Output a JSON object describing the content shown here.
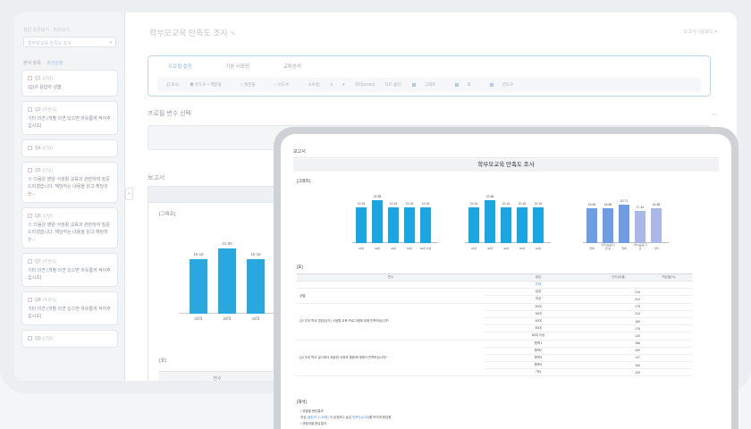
{
  "sidebar": {
    "survey_label": "설문 조문보기 · 미리보기",
    "survey_select": "학부모교육 만족도 조사",
    "tabs": [
      "분석 항목",
      "조건설정"
    ],
    "questions": [
      {
        "num": "Q1",
        "type": "(단일)",
        "text": "(Q)의 응답자 성별"
      },
      {
        "num": "Q2",
        "type": "(주관식)",
        "text": "기타 의견 (개별 의견 있으면 자유롭게 적어주십시오)"
      },
      {
        "num": "Q4",
        "type": "(단일)",
        "text": ""
      },
      {
        "num": "Q5",
        "type": "(단일)",
        "text": "※ 다음은 영양·식생활 교육과 관련하여 질문드리겠습니다. 해당하는 내용을 읽고 해당하는..."
      },
      {
        "num": "Q6",
        "type": "(단일)",
        "text": "※ 다음은 영양·식생활 교육과 관련하여 질문드리겠습니다. 해당하는 내용을 읽고 해당하는..."
      },
      {
        "num": "Q7",
        "type": "(주관식)",
        "text": "기타 의견 (개별 의견 있으면 자유롭게 적어주십시오)"
      },
      {
        "num": "Q8",
        "type": "(주관식)",
        "text": "기타 의견 (개별 의견 있으면 자유롭게 적어주십시오)"
      },
      {
        "num": "Q9",
        "type": "(단일)",
        "text": ""
      }
    ]
  },
  "main": {
    "title": "학부모교육 만족도 조사",
    "top_right": "보고서 다운로드 ▾",
    "option_tabs": [
      "프로필 설정",
      "기본 리포팅",
      "교차분석"
    ],
    "option_row": [
      "값 표시:",
      "빈도수 + 백분율",
      "백분율",
      "빈도수",
      "소수점:",
      "0",
      "자리(0.000)",
      "차트 옵션:",
      "그래프",
      "표",
      "빈도수"
    ],
    "profile_section": "프로필 변수 선택",
    "report_section": "보고서",
    "report_graph_label": "[그래프]",
    "report_table_label": "[표]",
    "report_table_head": "변수",
    "bg_bars": [
      {
        "category": "20대",
        "value": 19.16
      },
      {
        "category": "30대",
        "value": 22.88
      },
      {
        "category": "40대",
        "value": 19.16
      }
    ]
  },
  "overlay": {
    "label": "보고서",
    "title": "학부모교육 만족도 조사",
    "graph_label": "[그래프]",
    "table_label": "[표]",
    "note_label": "[해석]",
    "table_head": [
      "변수",
      "응답",
      "빈도(비율)",
      "백분율(%)"
    ],
    "table_rows": [
      {
        "group": "",
        "item": "전체",
        "value": "",
        "pct": ""
      },
      {
        "group": "성별",
        "item": "남성",
        "value": "",
        "pct": "216"
      },
      {
        "group": "",
        "item": "여성",
        "value": "",
        "pct": "412"
      },
      {
        "group": "Q2 우리 학교 영양(급식) 식생활 교육 프로그램에 대해 만족하십니까?",
        "item": "20대",
        "value": "",
        "pct": "175"
      },
      {
        "group": "",
        "item": "30대",
        "value": "",
        "pct": "212"
      },
      {
        "group": "",
        "item": "40대",
        "value": "",
        "pct": "180"
      },
      {
        "group": "",
        "item": "50대",
        "value": "",
        "pct": "176"
      },
      {
        "group": "",
        "item": "60대 이상",
        "value": "",
        "pct": "120"
      },
      {
        "group": "Q4 우리 학교 급식에서 제공한 교육과 활동에 대해서 만족하십니까?",
        "item": "항목1",
        "value": "",
        "pct": "166"
      },
      {
        "group": "",
        "item": "항목2",
        "value": "",
        "pct": "160"
      },
      {
        "group": "",
        "item": "항목3",
        "value": "",
        "pct": "117"
      },
      {
        "group": "",
        "item": "항목4",
        "value": "",
        "pct": "160"
      },
      {
        "group": "",
        "item": "기타",
        "value": "",
        "pct": "100"
      }
    ],
    "notes": [
      "• 성별별 응답결과",
      "여성 ",
      "(응답자 수 54명)",
      " 이 남성보다 높은 ",
      "만족도(4.33)",
      "를 보이며 응답함.",
      "• 연령대별 응답결과"
    ],
    "charts": [
      {
        "color": "#1aa6e0",
        "bars": [
          {
            "category": "20대",
            "value": 19.16
          },
          {
            "category": "30대",
            "value": 22.88
          },
          {
            "category": "40대",
            "value": 19.16
          },
          {
            "category": "50대",
            "value": 19.16
          },
          {
            "category": "60대 이상",
            "value": 19.16
          }
        ]
      },
      {
        "color": "#1aa6e0",
        "bars": [
          {
            "category": "20대",
            "value": 19.16
          },
          {
            "category": "30대",
            "value": 22.88
          },
          {
            "category": "40대",
            "value": 19.16
          },
          {
            "category": "50대",
            "value": 19.16
          },
          {
            "category": "60대",
            "value": 19.16
          }
        ]
      },
      {
        "color_gradient": [
          "#6f9de3",
          "#a9b8e8"
        ],
        "bars": [
          {
            "category": "항목",
            "value": 18.56
          },
          {
            "category": "국가(공공)기관 등",
            "value": 18.88
          },
          {
            "category": "항목",
            "value": 20.71
          },
          {
            "category": "기타(공공)기관",
            "value": 17.44
          },
          {
            "category": "기타",
            "value": 18.88
          }
        ]
      }
    ]
  },
  "chart_data": [
    {
      "type": "bar",
      "categories": [
        "20대",
        "30대",
        "40대",
        "50대",
        "60대 이상"
      ],
      "values": [
        19.16,
        22.88,
        19.16,
        19.16,
        19.16
      ],
      "ylim": [
        0,
        25
      ]
    },
    {
      "type": "bar",
      "categories": [
        "20대",
        "30대",
        "40대",
        "50대",
        "60대"
      ],
      "values": [
        19.16,
        22.88,
        19.16,
        19.16,
        19.16
      ],
      "ylim": [
        0,
        25
      ]
    },
    {
      "type": "bar",
      "categories": [
        "항목",
        "국가(공공)기관 등",
        "항목",
        "기타(공공)기관",
        "기타"
      ],
      "values": [
        18.56,
        18.88,
        20.71,
        17.44,
        18.88
      ],
      "ylim": [
        0,
        25
      ]
    }
  ]
}
